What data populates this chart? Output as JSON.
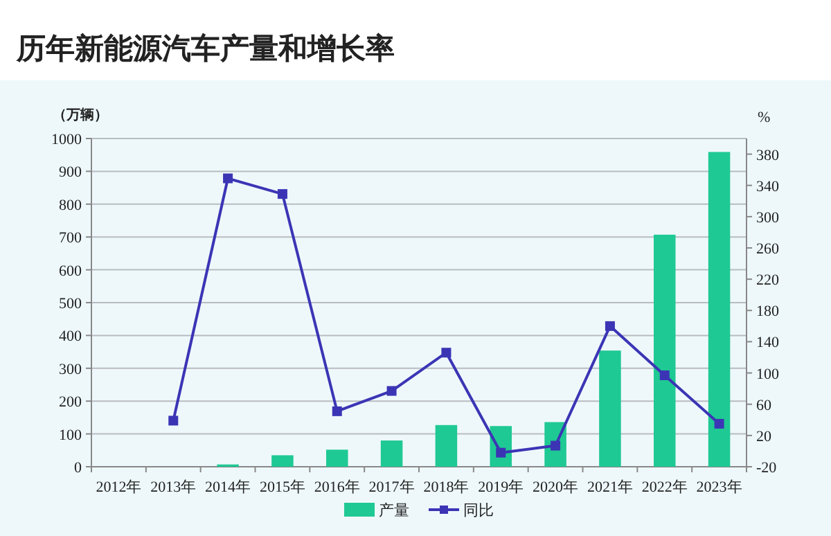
{
  "chart_data": {
    "type": "bar",
    "title": "历年新能源汽车产量和增长率",
    "ylabel": "（万辆）",
    "y2label": "%",
    "categories": [
      "2012年",
      "2013年",
      "2014年",
      "2015年",
      "2016年",
      "2017年",
      "2018年",
      "2019年",
      "2020年",
      "2021年",
      "2022年",
      "2023年"
    ],
    "series": [
      {
        "name": "产量",
        "color": "#1fc993",
        "values": [
          null,
          null,
          7,
          35,
          52,
          80,
          127,
          124,
          136,
          354,
          707,
          959
        ]
      },
      {
        "name": "同比",
        "type": "line",
        "axis": "y2",
        "color": "#3b35b5",
        "marker": "square",
        "values": [
          null,
          39,
          349,
          329,
          51,
          77,
          126,
          -2,
          7,
          160,
          97,
          35
        ]
      }
    ],
    "ylim": [
      0,
      1000
    ],
    "yticks": [
      0,
      100,
      200,
      300,
      400,
      500,
      600,
      700,
      800,
      900,
      1000
    ],
    "y2lim": [
      -20,
      400
    ],
    "y2ticks": [
      -20,
      20,
      60,
      100,
      140,
      180,
      220,
      260,
      300,
      340,
      380
    ],
    "grid": "y",
    "legend": "bottom"
  }
}
